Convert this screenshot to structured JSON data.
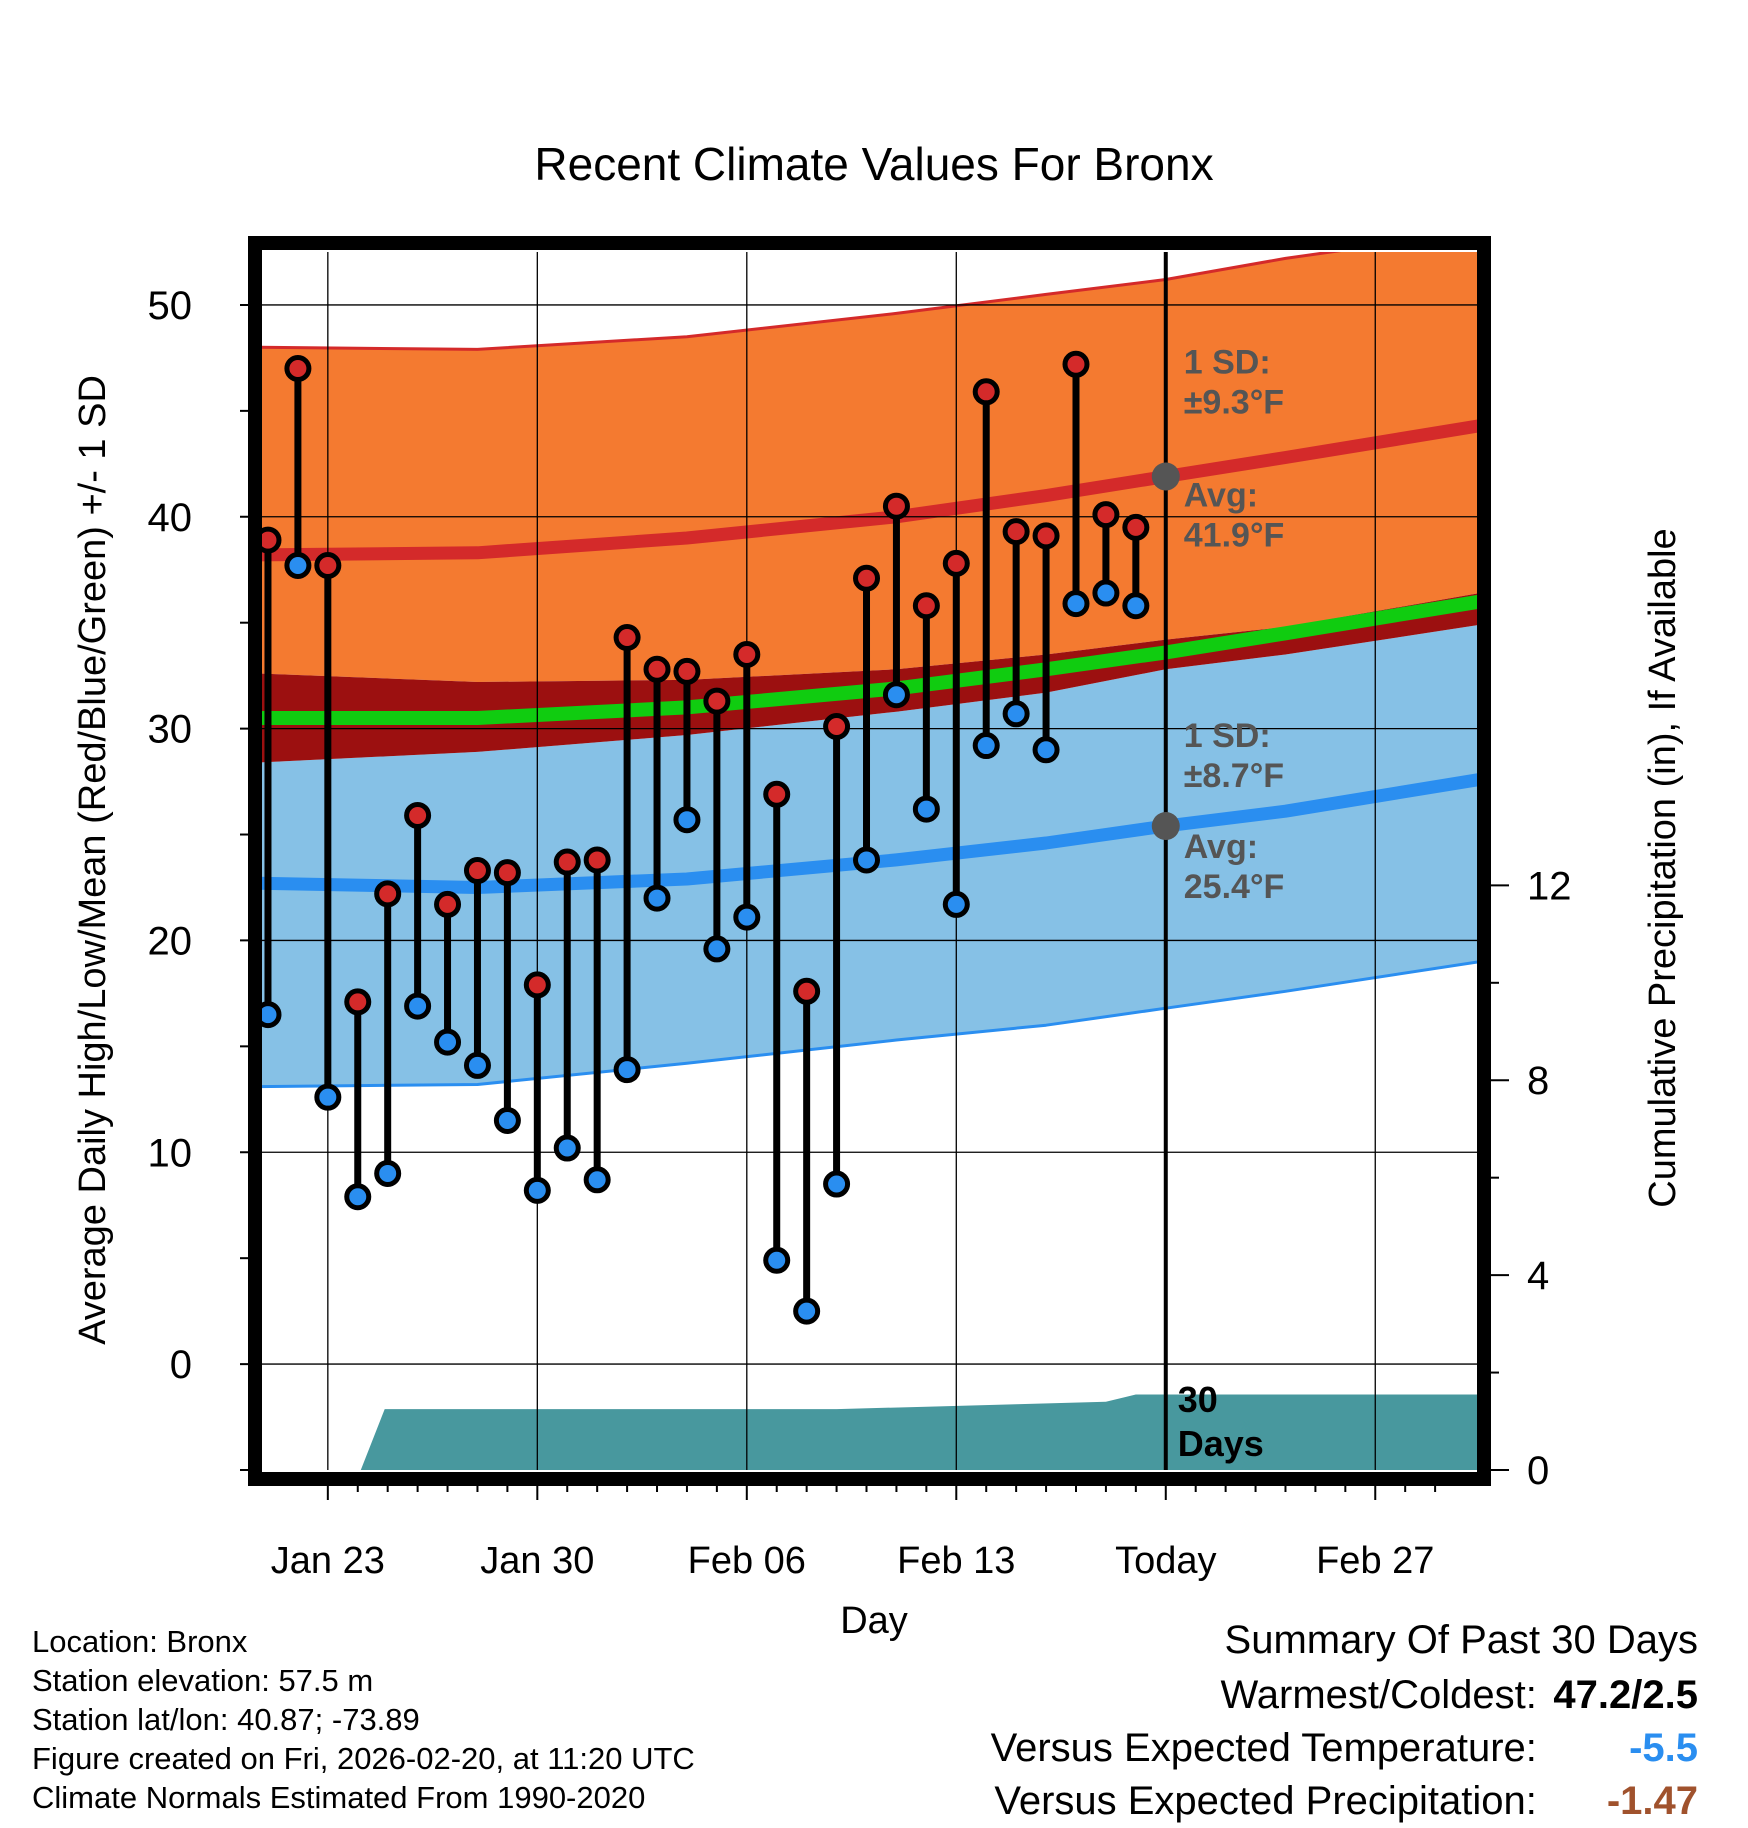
{
  "chart_data": {
    "type": "line",
    "title": "Recent Climate Values For Bronx",
    "xlabel": "Day",
    "ylabel": "Average Daily High/Low/Mean (Red/Blue/Green) +/- 1 SD",
    "y2label": "Cumulative Precipitation (in), If Available",
    "xlim": [
      -2.3,
      38.5
    ],
    "ylim": [
      -5,
      52.5
    ],
    "y2lim": [
      0,
      25
    ],
    "x_ticks": [
      {
        "x": 0,
        "label": "Jan 23"
      },
      {
        "x": 7,
        "label": "Jan 30"
      },
      {
        "x": 14,
        "label": "Feb 06"
      },
      {
        "x": 21,
        "label": "Feb 13"
      },
      {
        "x": 28,
        "label": "Today"
      },
      {
        "x": 35,
        "label": "Feb 27"
      }
    ],
    "y_ticks": [
      0,
      10,
      20,
      30,
      40,
      50
    ],
    "y_tick_labels": [
      "0",
      "10",
      "20",
      "30",
      "40",
      "50"
    ],
    "y2_ticks": [
      0,
      4,
      8,
      12
    ],
    "y2_tick_labels": [
      "0",
      "4",
      "8",
      "12"
    ],
    "today_x": 28,
    "normals": {
      "x": [
        -2.3,
        5,
        12,
        19,
        24,
        28,
        32,
        38.5
      ],
      "high_avg": [
        38.2,
        38.3,
        39.0,
        40.0,
        41.0,
        41.9,
        42.8,
        44.3
      ],
      "high_plus_sd": [
        48.0,
        47.9,
        48.5,
        49.6,
        50.5,
        51.2,
        52.2,
        53.5
      ],
      "high_minus_sd": [
        32.6,
        32.2,
        32.3,
        32.8,
        33.5,
        34.2,
        34.8,
        36.4
      ],
      "low_avg": [
        22.7,
        22.5,
        22.9,
        23.8,
        24.6,
        25.4,
        26.1,
        27.6
      ],
      "low_plus_sd": [
        28.4,
        28.9,
        29.7,
        30.8,
        31.7,
        32.8,
        33.5,
        34.9
      ],
      "low_minus_sd": [
        13.1,
        13.2,
        14.2,
        15.3,
        16.0,
        16.8,
        17.6,
        19.0
      ],
      "mean_avg": [
        30.5,
        30.5,
        31.0,
        31.9,
        32.8,
        33.6,
        34.5,
        36.0
      ]
    },
    "highs_lows": {
      "x": [
        -2,
        -1,
        0,
        1,
        2,
        3,
        4,
        5,
        6,
        7,
        8,
        9,
        10,
        11,
        12,
        13,
        14,
        15,
        16,
        17,
        18,
        19,
        20,
        21,
        22,
        23,
        24,
        25,
        26,
        27
      ],
      "high": [
        38.9,
        47.0,
        37.7,
        17.1,
        22.2,
        25.9,
        21.7,
        23.3,
        23.2,
        17.9,
        23.7,
        23.8,
        34.3,
        32.8,
        32.7,
        31.3,
        33.5,
        26.9,
        17.6,
        30.1,
        37.1,
        40.5,
        35.8,
        37.8,
        45.9,
        39.3,
        39.1,
        47.2,
        40.1,
        39.5
      ],
      "low": [
        16.5,
        37.7,
        12.6,
        7.9,
        9.0,
        16.9,
        15.2,
        14.1,
        11.5,
        8.2,
        10.2,
        8.7,
        13.9,
        22.0,
        25.7,
        19.6,
        21.1,
        4.9,
        2.5,
        8.5,
        23.8,
        31.6,
        26.2,
        21.7,
        29.2,
        30.7,
        29.0,
        35.9,
        36.4,
        35.8
      ]
    },
    "precip": {
      "x": [
        1.1,
        1.9,
        14,
        17,
        20,
        23,
        26,
        27,
        38.5
      ],
      "values": [
        0,
        1.25,
        1.25,
        1.25,
        1.3,
        1.35,
        1.4,
        1.55,
        1.55
      ]
    },
    "annotations": {
      "high_sd": [
        "1 SD:",
        "±9.3°F"
      ],
      "high_avg": [
        "Avg:",
        "41.9°F"
      ],
      "low_sd": [
        "1 SD:",
        "±8.7°F"
      ],
      "low_avg": [
        "Avg:",
        "25.4°F"
      ],
      "days": [
        "30",
        "Days"
      ]
    },
    "colors": {
      "high_band": "#f47a30",
      "high_line": "#d42a2a",
      "low_band": "#86c1e6",
      "low_line": "#2a8ef0",
      "mean_band": "#9c1010",
      "mean_line": "#10cc10",
      "precip": "#48989e",
      "high_dot": "#d42a2a",
      "low_dot": "#2a8ef0",
      "annotation": "#555555"
    }
  },
  "info": {
    "location": "Location: Bronx",
    "elevation": "Station elevation: 57.5 m",
    "latlon": "Station lat/lon: 40.87; -73.89",
    "created": "Figure created on Fri, 2026-02-20, at 11:20 UTC",
    "normals": "Climate Normals Estimated From 1990-2020"
  },
  "summary": {
    "title": "Summary Of Past 30 Days",
    "warmest_label": "Warmest/Coldest:",
    "warmest_value": "47.2/2.5",
    "temp_label": "Versus Expected Temperature:",
    "temp_value": "-5.5",
    "temp_color": "#2a8ef0",
    "precip_label": "Versus Expected Precipitation:",
    "precip_value": "-1.47",
    "precip_color": "#a0522d"
  }
}
